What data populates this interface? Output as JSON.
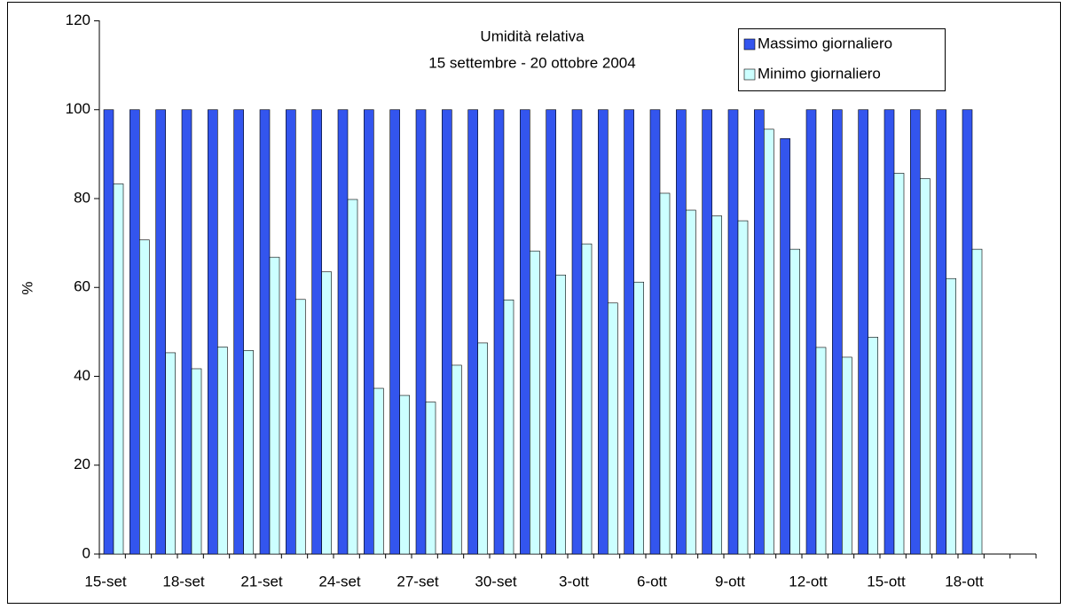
{
  "chart_data": {
    "type": "bar",
    "title": "Umidità relativa",
    "subtitle": "15 settembre - 20 ottobre 2004",
    "y_label": "%",
    "categories": [
      "15-set",
      null,
      null,
      "18-set",
      null,
      null,
      "21-set",
      null,
      null,
      "24-set",
      null,
      null,
      "27-set",
      null,
      null,
      "30-set",
      null,
      null,
      "3-ott",
      null,
      null,
      "6-ott",
      null,
      null,
      "9-ott",
      null,
      null,
      "12-ott",
      null,
      null,
      "15-ott",
      null,
      null,
      "18-ott",
      null,
      null
    ],
    "series": [
      {
        "name": "Massimo giornaliero",
        "color": "#3355ee",
        "values": [
          100,
          100,
          100,
          100,
          100,
          100,
          100,
          100,
          100,
          100,
          100,
          100,
          100,
          100,
          100,
          100,
          100,
          100,
          100,
          100,
          100,
          100,
          100,
          100,
          100,
          100,
          93.5,
          100,
          100,
          100,
          100,
          100,
          100,
          100,
          null,
          null
        ]
      },
      {
        "name": "Minimo giornaliero",
        "color": "#ccffff",
        "values": [
          83.3,
          70.7,
          45.3,
          41.7,
          46.6,
          45.8,
          66.8,
          57.3,
          63.5,
          79.8,
          37.3,
          35.7,
          34.2,
          42.5,
          47.5,
          57.2,
          68.2,
          62.8,
          69.8,
          56.5,
          61.2,
          81.2,
          77.4,
          76.1,
          75.0,
          95.6,
          68.6,
          46.5,
          44.3,
          48.8,
          85.7,
          84.5,
          62.0,
          68.6,
          null,
          null
        ]
      }
    ],
    "ylim": [
      0,
      120
    ],
    "yticks": [
      0,
      20,
      40,
      60,
      80,
      100,
      120
    ],
    "grid": false,
    "legend": "top-right"
  }
}
